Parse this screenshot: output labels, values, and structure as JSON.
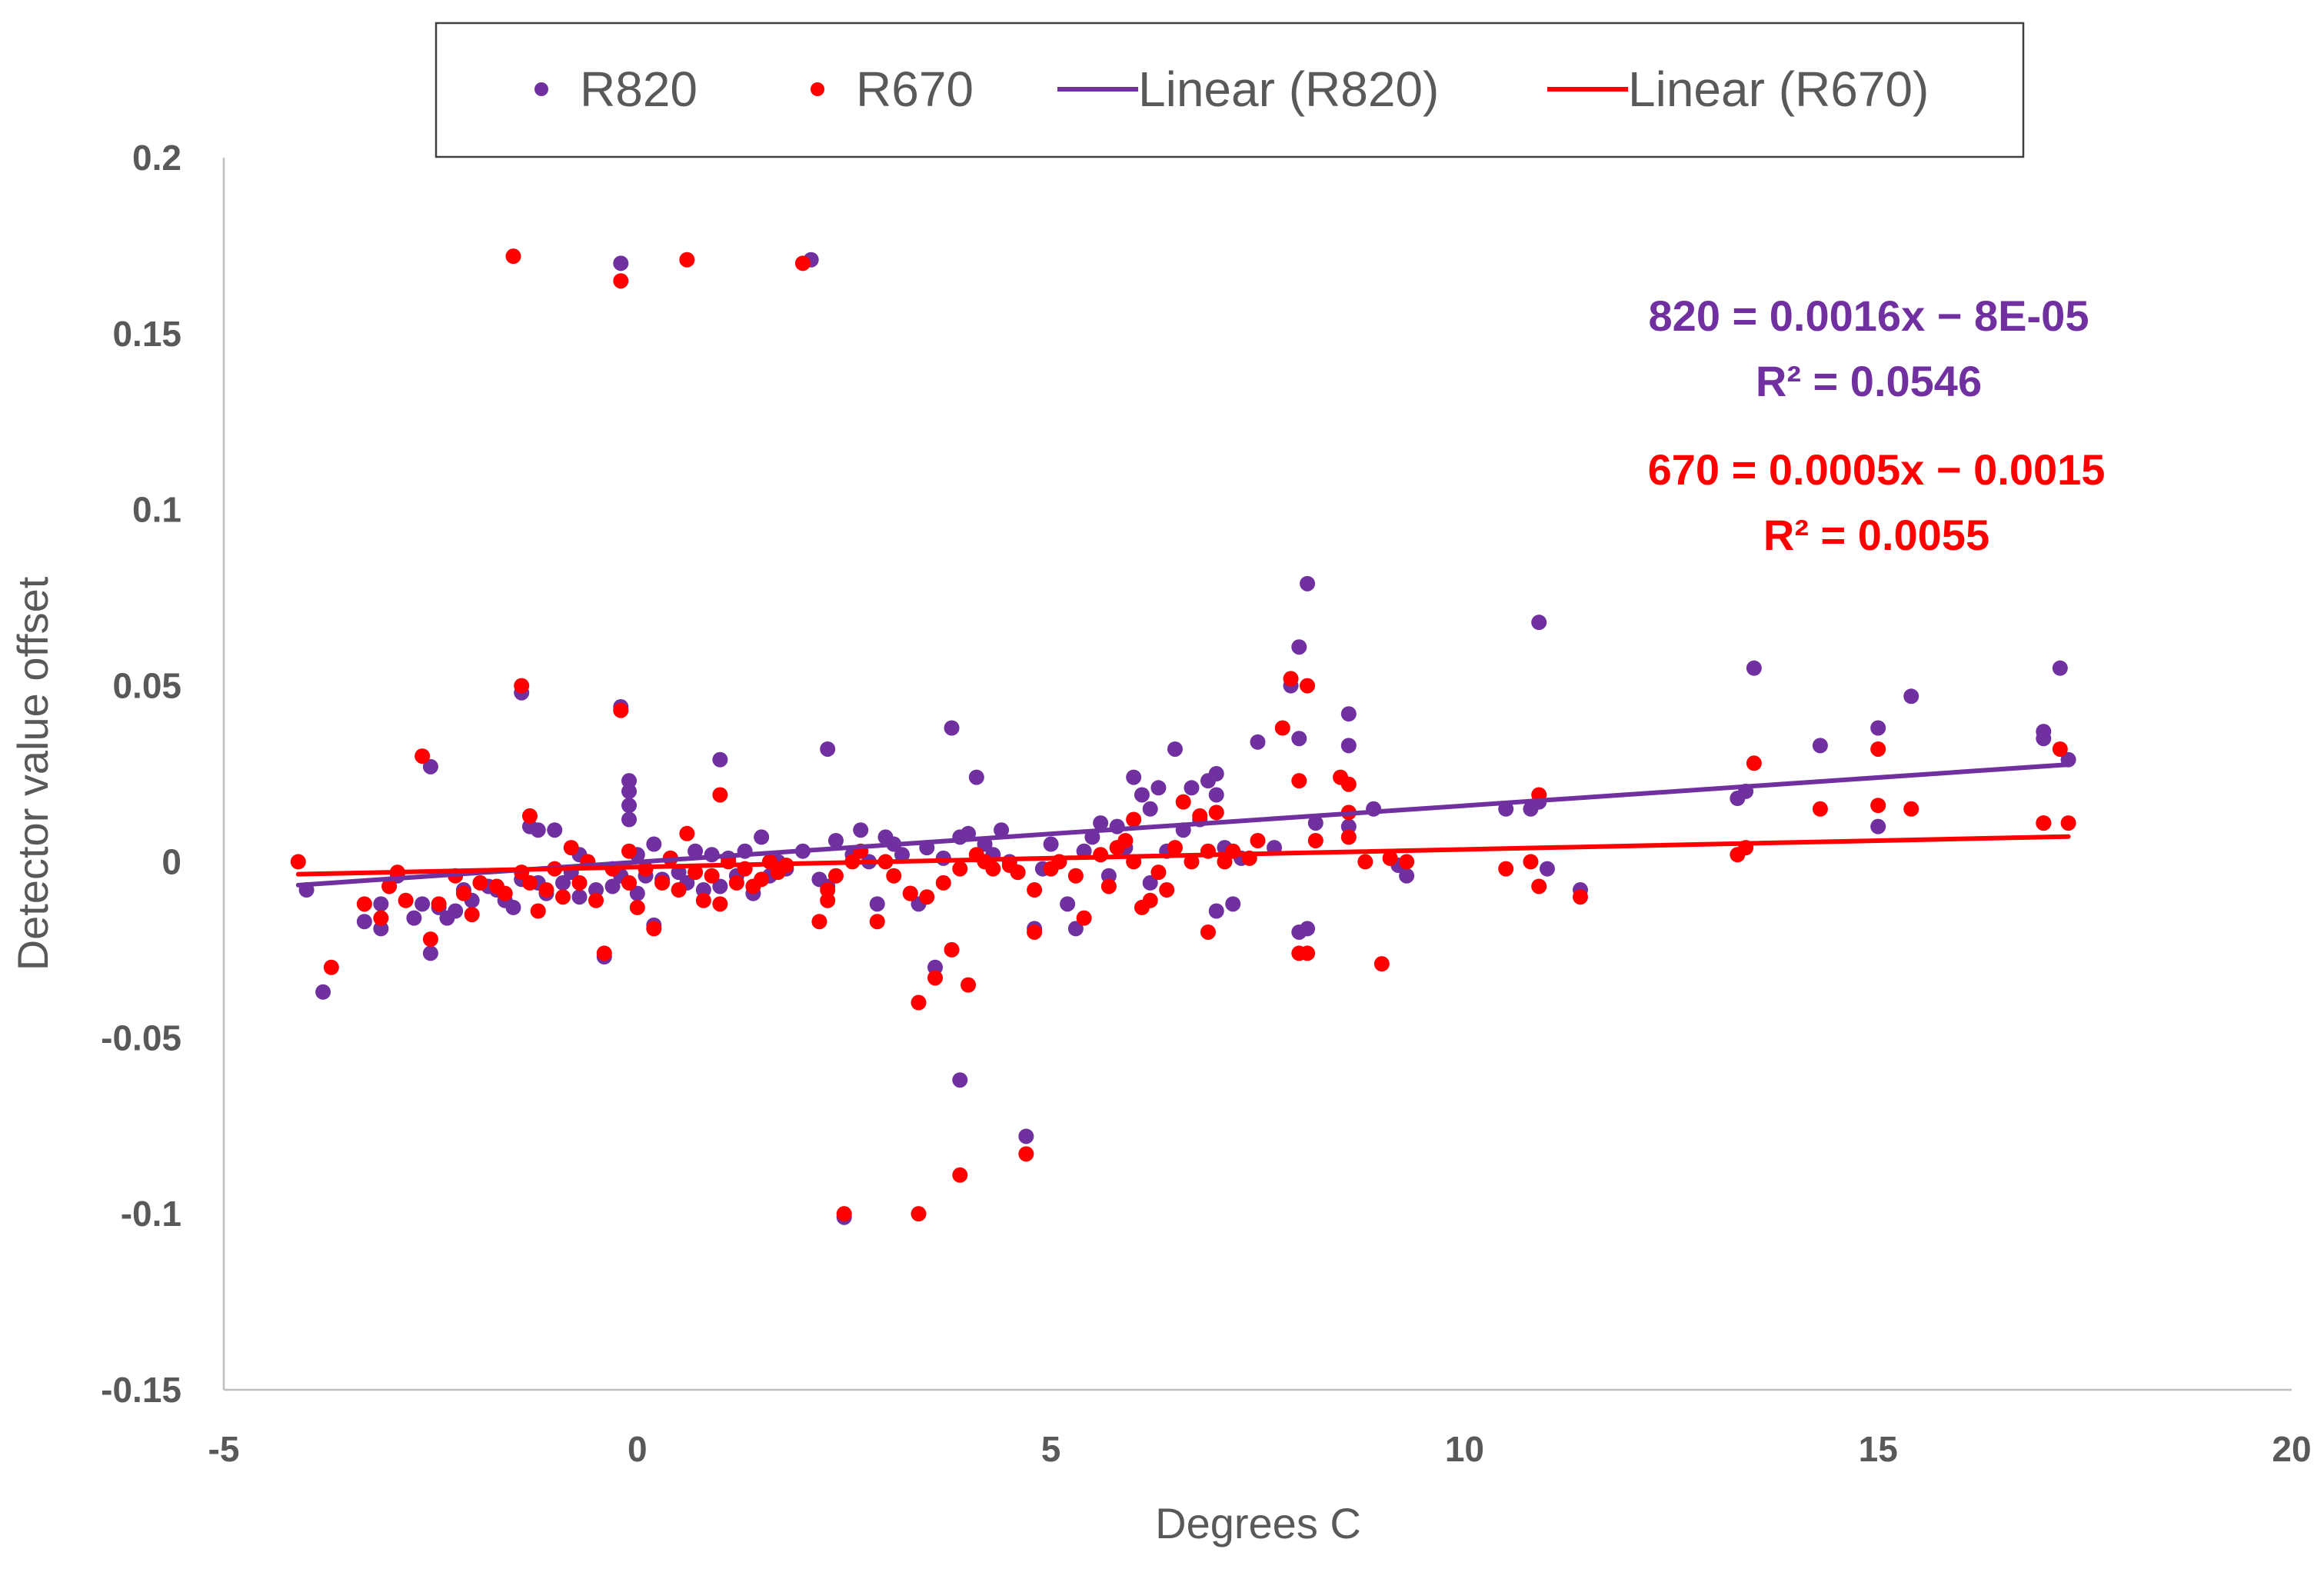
{
  "chart_data": {
    "type": "scatter",
    "xlabel": "Degrees C",
    "ylabel": "Detector value offset",
    "xlim": [
      -5,
      20
    ],
    "ylim": [
      -0.15,
      0.2
    ],
    "x_ticks": [
      -5,
      0,
      5,
      10,
      15,
      20
    ],
    "y_ticks": [
      -0.15,
      -0.1,
      -0.05,
      0,
      0.05,
      0.1,
      0.15,
      0.2
    ],
    "x_tick_labels": [
      "-5",
      "0",
      "5",
      "10",
      "15",
      "20"
    ],
    "y_tick_labels": [
      "-0.15",
      "-0.1",
      "-0.05",
      "0",
      "0.05",
      "0.1",
      "0.15",
      "0.2"
    ],
    "grid": false,
    "legend": {
      "position": "top",
      "entries": [
        {
          "label": "R820",
          "kind": "marker",
          "color": "#7030A0"
        },
        {
          "label": "R670",
          "kind": "marker",
          "color": "#FF0000"
        },
        {
          "label": "Linear (R820)",
          "kind": "line",
          "color": "#7030A0"
        },
        {
          "label": "Linear (R670)",
          "kind": "line",
          "color": "#FF0000"
        }
      ]
    },
    "annotations": [
      {
        "series": "R820",
        "color": "#7030A0",
        "lines": [
          "820 = 0.0016x − 8E-05",
          "R² = 0.0546"
        ]
      },
      {
        "series": "R670",
        "color": "#FF0000",
        "lines": [
          "670 = 0.0005x − 0.0015",
          "R² = 0.0055"
        ]
      }
    ],
    "series": [
      {
        "name": "R820",
        "color": "#7030A0",
        "trendline": {
          "slope": 0.0016,
          "intercept": -8e-05,
          "x_range": [
            -4.1,
            17.3
          ]
        },
        "points": [
          [
            -4.0,
            -0.008
          ],
          [
            -3.8,
            -0.037
          ],
          [
            -3.3,
            -0.017
          ],
          [
            -3.1,
            -0.019
          ],
          [
            -3.1,
            -0.012
          ],
          [
            -2.9,
            -0.004
          ],
          [
            -2.7,
            -0.016
          ],
          [
            -2.6,
            -0.012
          ],
          [
            -2.5,
            0.027
          ],
          [
            -2.5,
            -0.026
          ],
          [
            -2.4,
            -0.013
          ],
          [
            -2.3,
            -0.016
          ],
          [
            -2.2,
            -0.014
          ],
          [
            -2.1,
            -0.008
          ],
          [
            -2.0,
            -0.011
          ],
          [
            -1.8,
            -0.007
          ],
          [
            -1.7,
            -0.008
          ],
          [
            -1.6,
            -0.011
          ],
          [
            -1.5,
            -0.013
          ],
          [
            -1.4,
            0.048
          ],
          [
            -1.4,
            -0.005
          ],
          [
            -1.3,
            0.01
          ],
          [
            -1.2,
            0.009
          ],
          [
            -1.2,
            -0.006
          ],
          [
            -1.1,
            -0.009
          ],
          [
            -1.0,
            0.009
          ],
          [
            -0.9,
            -0.006
          ],
          [
            -0.8,
            -0.003
          ],
          [
            -0.7,
            0.002
          ],
          [
            -0.7,
            -0.01
          ],
          [
            -0.6,
            0.0
          ],
          [
            -0.5,
            -0.008
          ],
          [
            -0.4,
            -0.027
          ],
          [
            -0.3,
            -0.007
          ],
          [
            -0.2,
            0.17
          ],
          [
            -0.2,
            0.044
          ],
          [
            -0.2,
            -0.004
          ],
          [
            -0.1,
            0.023
          ],
          [
            -0.1,
            0.02
          ],
          [
            -0.1,
            0.016
          ],
          [
            -0.1,
            0.012
          ],
          [
            0.0,
            0.002
          ],
          [
            0.0,
            -0.009
          ],
          [
            0.1,
            -0.004
          ],
          [
            0.2,
            0.005
          ],
          [
            0.2,
            -0.018
          ],
          [
            0.3,
            -0.005
          ],
          [
            0.4,
            0.001
          ],
          [
            0.5,
            -0.003
          ],
          [
            0.6,
            -0.006
          ],
          [
            0.7,
            0.003
          ],
          [
            0.8,
            -0.008
          ],
          [
            0.9,
            0.002
          ],
          [
            1.0,
            0.029
          ],
          [
            1.0,
            -0.007
          ],
          [
            1.1,
            0.001
          ],
          [
            1.2,
            -0.004
          ],
          [
            1.3,
            0.003
          ],
          [
            1.4,
            -0.009
          ],
          [
            1.5,
            0.007
          ],
          [
            1.6,
            -0.004
          ],
          [
            1.7,
            0.0
          ],
          [
            1.8,
            -0.002
          ],
          [
            2.0,
            0.003
          ],
          [
            2.1,
            0.171
          ],
          [
            2.2,
            -0.005
          ],
          [
            2.3,
            0.032
          ],
          [
            2.3,
            -0.007
          ],
          [
            2.4,
            0.006
          ],
          [
            2.5,
            -0.101
          ],
          [
            2.6,
            0.002
          ],
          [
            2.7,
            0.009
          ],
          [
            2.8,
            0.0
          ],
          [
            2.9,
            -0.012
          ],
          [
            3.0,
            0.007
          ],
          [
            3.1,
            0.005
          ],
          [
            3.2,
            0.002
          ],
          [
            3.3,
            -0.009
          ],
          [
            3.4,
            -0.012
          ],
          [
            3.5,
            0.004
          ],
          [
            3.6,
            -0.03
          ],
          [
            3.7,
            0.001
          ],
          [
            3.8,
            0.038
          ],
          [
            3.9,
            0.007
          ],
          [
            3.9,
            -0.062
          ],
          [
            4.0,
            0.008
          ],
          [
            4.1,
            0.024
          ],
          [
            4.2,
            0.005
          ],
          [
            4.3,
            0.002
          ],
          [
            4.4,
            0.009
          ],
          [
            4.5,
            0.0
          ],
          [
            4.6,
            -0.003
          ],
          [
            4.7,
            -0.078
          ],
          [
            4.8,
            -0.019
          ],
          [
            4.9,
            -0.002
          ],
          [
            5.0,
            0.005
          ],
          [
            5.1,
            0.0
          ],
          [
            5.2,
            -0.012
          ],
          [
            5.3,
            -0.019
          ],
          [
            5.4,
            0.003
          ],
          [
            5.5,
            0.007
          ],
          [
            5.6,
            0.011
          ],
          [
            5.7,
            -0.004
          ],
          [
            5.8,
            0.01
          ],
          [
            5.9,
            0.004
          ],
          [
            6.0,
            0.024
          ],
          [
            6.1,
            0.019
          ],
          [
            6.2,
            0.015
          ],
          [
            6.2,
            -0.006
          ],
          [
            6.3,
            0.021
          ],
          [
            6.4,
            0.003
          ],
          [
            6.5,
            0.032
          ],
          [
            6.6,
            0.009
          ],
          [
            6.7,
            0.021
          ],
          [
            6.8,
            0.012
          ],
          [
            6.9,
            0.023
          ],
          [
            7.0,
            0.025
          ],
          [
            7.0,
            0.019
          ],
          [
            7.0,
            -0.014
          ],
          [
            7.1,
            0.004
          ],
          [
            7.2,
            -0.012
          ],
          [
            7.3,
            0.001
          ],
          [
            7.5,
            0.034
          ],
          [
            7.7,
            0.004
          ],
          [
            7.9,
            0.05
          ],
          [
            8.0,
            0.061
          ],
          [
            8.0,
            0.035
          ],
          [
            8.0,
            -0.02
          ],
          [
            8.1,
            0.079
          ],
          [
            8.1,
            -0.019
          ],
          [
            8.2,
            0.011
          ],
          [
            8.6,
            0.042
          ],
          [
            8.6,
            0.033
          ],
          [
            8.6,
            0.01
          ],
          [
            8.9,
            0.015
          ],
          [
            9.2,
            -0.001
          ],
          [
            9.3,
            -0.004
          ],
          [
            10.5,
            0.015
          ],
          [
            10.8,
            0.015
          ],
          [
            10.9,
            0.068
          ],
          [
            10.9,
            0.017
          ],
          [
            11.0,
            -0.002
          ],
          [
            11.4,
            -0.008
          ],
          [
            13.3,
            0.018
          ],
          [
            13.4,
            0.02
          ],
          [
            13.5,
            0.055
          ],
          [
            14.3,
            0.033
          ],
          [
            15.0,
            0.038
          ],
          [
            15.0,
            0.01
          ],
          [
            15.4,
            0.047
          ],
          [
            17.0,
            0.037
          ],
          [
            17.0,
            0.035
          ],
          [
            17.2,
            0.055
          ],
          [
            17.3,
            0.029
          ]
        ]
      },
      {
        "name": "R670",
        "color": "#FF0000",
        "trendline": {
          "slope": 0.0005,
          "intercept": -0.0015,
          "x_range": [
            -4.1,
            17.3
          ]
        },
        "points": [
          [
            -4.1,
            0.0
          ],
          [
            -3.7,
            -0.03
          ],
          [
            -3.3,
            -0.012
          ],
          [
            -3.1,
            -0.016
          ],
          [
            -3.0,
            -0.007
          ],
          [
            -2.9,
            -0.003
          ],
          [
            -2.8,
            -0.011
          ],
          [
            -2.6,
            0.03
          ],
          [
            -2.5,
            -0.022
          ],
          [
            -2.4,
            -0.012
          ],
          [
            -2.2,
            -0.004
          ],
          [
            -2.1,
            -0.009
          ],
          [
            -2.0,
            -0.015
          ],
          [
            -1.9,
            -0.006
          ],
          [
            -1.7,
            -0.007
          ],
          [
            -1.6,
            -0.009
          ],
          [
            -1.5,
            0.172
          ],
          [
            -1.4,
            0.05
          ],
          [
            -1.4,
            -0.003
          ],
          [
            -1.3,
            0.013
          ],
          [
            -1.3,
            -0.006
          ],
          [
            -1.2,
            -0.014
          ],
          [
            -1.1,
            -0.008
          ],
          [
            -1.0,
            -0.002
          ],
          [
            -0.9,
            -0.01
          ],
          [
            -0.8,
            0.004
          ],
          [
            -0.7,
            -0.006
          ],
          [
            -0.6,
            0.0
          ],
          [
            -0.5,
            -0.011
          ],
          [
            -0.4,
            -0.026
          ],
          [
            -0.3,
            -0.002
          ],
          [
            -0.2,
            0.165
          ],
          [
            -0.2,
            0.043
          ],
          [
            -0.1,
            0.003
          ],
          [
            -0.1,
            -0.006
          ],
          [
            0.0,
            -0.013
          ],
          [
            0.1,
            -0.002
          ],
          [
            0.2,
            -0.019
          ],
          [
            0.3,
            -0.006
          ],
          [
            0.4,
            0.001
          ],
          [
            0.5,
            -0.008
          ],
          [
            0.6,
            0.171
          ],
          [
            0.6,
            0.008
          ],
          [
            0.7,
            -0.003
          ],
          [
            0.8,
            -0.011
          ],
          [
            0.9,
            -0.004
          ],
          [
            1.0,
            0.019
          ],
          [
            1.0,
            -0.012
          ],
          [
            1.1,
            0.0
          ],
          [
            1.2,
            -0.006
          ],
          [
            1.3,
            -0.002
          ],
          [
            1.4,
            -0.007
          ],
          [
            1.5,
            -0.005
          ],
          [
            1.6,
            0.0
          ],
          [
            1.7,
            -0.003
          ],
          [
            1.8,
            -0.001
          ],
          [
            2.0,
            0.17
          ],
          [
            2.2,
            -0.017
          ],
          [
            2.3,
            -0.008
          ],
          [
            2.3,
            -0.011
          ],
          [
            2.4,
            -0.004
          ],
          [
            2.5,
            -0.1
          ],
          [
            2.6,
            0.0
          ],
          [
            2.7,
            0.003
          ],
          [
            2.9,
            -0.017
          ],
          [
            3.0,
            0.0
          ],
          [
            3.1,
            -0.004
          ],
          [
            3.3,
            -0.009
          ],
          [
            3.4,
            -0.04
          ],
          [
            3.4,
            -0.1
          ],
          [
            3.5,
            -0.01
          ],
          [
            3.6,
            -0.033
          ],
          [
            3.7,
            -0.006
          ],
          [
            3.8,
            -0.025
          ],
          [
            3.9,
            -0.089
          ],
          [
            3.9,
            -0.002
          ],
          [
            4.0,
            -0.035
          ],
          [
            4.1,
            0.002
          ],
          [
            4.2,
            0.0
          ],
          [
            4.3,
            -0.002
          ],
          [
            4.5,
            -0.001
          ],
          [
            4.6,
            -0.003
          ],
          [
            4.7,
            -0.083
          ],
          [
            4.8,
            -0.02
          ],
          [
            4.8,
            -0.008
          ],
          [
            5.0,
            -0.002
          ],
          [
            5.1,
            0.0
          ],
          [
            5.3,
            -0.004
          ],
          [
            5.4,
            -0.016
          ],
          [
            5.6,
            0.002
          ],
          [
            5.7,
            -0.007
          ],
          [
            5.8,
            0.004
          ],
          [
            5.9,
            0.006
          ],
          [
            6.0,
            0.012
          ],
          [
            6.0,
            0.0
          ],
          [
            6.1,
            -0.013
          ],
          [
            6.2,
            -0.011
          ],
          [
            6.3,
            -0.003
          ],
          [
            6.4,
            -0.008
          ],
          [
            6.5,
            0.004
          ],
          [
            6.6,
            0.017
          ],
          [
            6.7,
            0.0
          ],
          [
            6.8,
            0.013
          ],
          [
            6.9,
            -0.02
          ],
          [
            6.9,
            0.003
          ],
          [
            7.0,
            0.014
          ],
          [
            7.1,
            0.0
          ],
          [
            7.2,
            0.003
          ],
          [
            7.4,
            0.001
          ],
          [
            7.5,
            0.006
          ],
          [
            7.8,
            0.038
          ],
          [
            7.9,
            0.052
          ],
          [
            8.0,
            0.023
          ],
          [
            8.0,
            -0.026
          ],
          [
            8.1,
            0.05
          ],
          [
            8.1,
            -0.026
          ],
          [
            8.2,
            0.006
          ],
          [
            8.5,
            0.024
          ],
          [
            8.6,
            0.022
          ],
          [
            8.6,
            0.014
          ],
          [
            8.6,
            0.007
          ],
          [
            8.8,
            0.0
          ],
          [
            9.0,
            -0.029
          ],
          [
            9.1,
            0.001
          ],
          [
            9.3,
            0.0
          ],
          [
            10.5,
            -0.002
          ],
          [
            10.8,
            0.0
          ],
          [
            10.9,
            0.019
          ],
          [
            10.9,
            -0.007
          ],
          [
            11.4,
            -0.01
          ],
          [
            13.3,
            0.002
          ],
          [
            13.4,
            0.004
          ],
          [
            13.5,
            0.028
          ],
          [
            14.3,
            0.015
          ],
          [
            15.0,
            0.032
          ],
          [
            15.0,
            0.016
          ],
          [
            15.4,
            0.015
          ],
          [
            17.0,
            0.011
          ],
          [
            17.0,
            0.011
          ],
          [
            17.2,
            0.032
          ],
          [
            17.3,
            0.011
          ]
        ]
      }
    ]
  }
}
